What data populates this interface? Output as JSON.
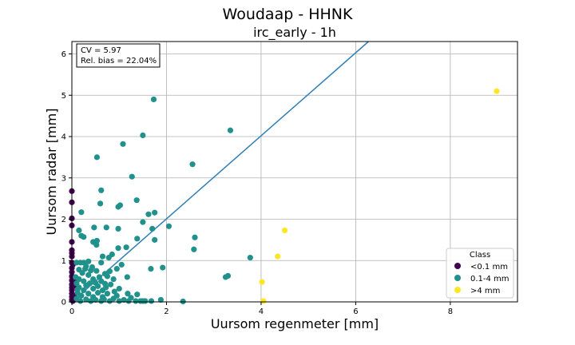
{
  "figure": {
    "suptitle": "Woudaap - HHNK"
  },
  "chart_data": {
    "type": "scatter",
    "title": "irc_early - 1h",
    "xlabel": "Uursom regenmeter [mm]",
    "ylabel": "Uursom radar [mm]",
    "xlim": [
      0,
      9.42
    ],
    "ylim": [
      0,
      6.3
    ],
    "xticks": [
      0,
      2,
      4,
      6,
      8
    ],
    "yticks": [
      0,
      1,
      2,
      3,
      4,
      5,
      6
    ],
    "xtick_labels": [
      "0",
      "2",
      "4",
      "6",
      "8"
    ],
    "ytick_labels": [
      "0",
      "1",
      "2",
      "3",
      "4",
      "5",
      "6"
    ],
    "grid": true,
    "stats": {
      "cv_line": "CV = 5.97",
      "bias_line": "Rel. bias = 22.04%",
      "placement": "top-left"
    },
    "fit_line": {
      "color": "#2f7fb6",
      "points": [
        [
          0,
          0
        ],
        [
          6.27,
          6.3
        ]
      ]
    },
    "legend": {
      "title": "Class",
      "placement": "bottom-right"
    },
    "series": [
      {
        "name": "<0.1 mm",
        "color": "#440154",
        "points": [
          [
            0,
            2.68
          ],
          [
            0,
            2.41
          ],
          [
            0,
            2.02
          ],
          [
            0,
            1.85
          ],
          [
            0,
            1.45
          ],
          [
            0,
            1.25
          ],
          [
            0,
            1.18
          ],
          [
            0,
            1.1
          ],
          [
            0,
            0.95
          ],
          [
            0,
            0.82
          ],
          [
            0,
            0.72
          ],
          [
            0,
            0.62
          ],
          [
            0,
            0.52
          ],
          [
            0,
            0.42
          ],
          [
            0,
            0.35
          ],
          [
            0,
            0.28
          ],
          [
            0,
            0.2
          ],
          [
            0,
            0.12
          ],
          [
            0,
            0.05
          ],
          [
            0.02,
            0.9
          ],
          [
            0.03,
            0.6
          ],
          [
            0.04,
            0.38
          ],
          [
            0.05,
            0.15
          ],
          [
            0.06,
            0.52
          ],
          [
            0.02,
            0.02
          ]
        ]
      },
      {
        "name": "0.1-4 mm",
        "color": "#21918c",
        "points": [
          [
            1.73,
            4.9
          ],
          [
            3.35,
            4.15
          ],
          [
            1.5,
            4.03
          ],
          [
            1.08,
            3.82
          ],
          [
            0.53,
            3.5
          ],
          [
            2.55,
            3.33
          ],
          [
            1.27,
            3.03
          ],
          [
            0.62,
            2.7
          ],
          [
            1.37,
            2.46
          ],
          [
            0.6,
            2.38
          ],
          [
            1.02,
            2.34
          ],
          [
            0.98,
            2.3
          ],
          [
            1.75,
            2.16
          ],
          [
            1.62,
            2.12
          ],
          [
            0.2,
            2.17
          ],
          [
            1.5,
            1.93
          ],
          [
            2.05,
            1.83
          ],
          [
            0.47,
            1.8
          ],
          [
            0.73,
            1.8
          ],
          [
            0.98,
            1.77
          ],
          [
            1.7,
            1.77
          ],
          [
            0.15,
            1.73
          ],
          [
            0.2,
            1.6
          ],
          [
            0.25,
            1.57
          ],
          [
            2.6,
            1.56
          ],
          [
            1.38,
            1.53
          ],
          [
            1.75,
            1.5
          ],
          [
            0.53,
            1.48
          ],
          [
            0.45,
            1.45
          ],
          [
            0.52,
            1.38
          ],
          [
            1.15,
            1.32
          ],
          [
            0.98,
            1.3
          ],
          [
            2.58,
            1.27
          ],
          [
            0.85,
            1.15
          ],
          [
            0.65,
            1.1
          ],
          [
            3.77,
            1.07
          ],
          [
            0.78,
            1.07
          ],
          [
            0.1,
            0.95
          ],
          [
            0.18,
            0.95
          ],
          [
            0.25,
            0.95
          ],
          [
            0.35,
            0.98
          ],
          [
            0.62,
            0.95
          ],
          [
            1.05,
            0.9
          ],
          [
            0.3,
            0.86
          ],
          [
            0.43,
            0.84
          ],
          [
            1.92,
            0.83
          ],
          [
            1.67,
            0.8
          ],
          [
            0.95,
            0.8
          ],
          [
            0.15,
            0.78
          ],
          [
            0.4,
            0.76
          ],
          [
            0.52,
            0.75
          ],
          [
            0.8,
            0.74
          ],
          [
            0.22,
            0.7
          ],
          [
            0.7,
            0.68
          ],
          [
            0.35,
            0.65
          ],
          [
            0.75,
            0.62
          ],
          [
            3.3,
            0.63
          ],
          [
            3.25,
            0.6
          ],
          [
            1.17,
            0.6
          ],
          [
            0.15,
            0.55
          ],
          [
            0.45,
            0.55
          ],
          [
            0.88,
            0.55
          ],
          [
            0.25,
            0.5
          ],
          [
            0.62,
            0.5
          ],
          [
            0.1,
            0.45
          ],
          [
            0.38,
            0.45
          ],
          [
            0.5,
            0.46
          ],
          [
            0.7,
            0.44
          ],
          [
            0.3,
            0.4
          ],
          [
            0.55,
            0.38
          ],
          [
            0.82,
            0.42
          ],
          [
            0.15,
            0.35
          ],
          [
            0.45,
            0.32
          ],
          [
            1.0,
            0.32
          ],
          [
            0.25,
            0.28
          ],
          [
            0.65,
            0.28
          ],
          [
            0.12,
            0.22
          ],
          [
            0.35,
            0.2
          ],
          [
            0.55,
            0.22
          ],
          [
            0.75,
            0.2
          ],
          [
            1.18,
            0.2
          ],
          [
            1.38,
            0.18
          ],
          [
            0.2,
            0.15
          ],
          [
            0.45,
            0.12
          ],
          [
            0.65,
            0.12
          ],
          [
            0.95,
            0.15
          ],
          [
            0.1,
            0.08
          ],
          [
            0.3,
            0.06
          ],
          [
            0.5,
            0.05
          ],
          [
            0.68,
            0.06
          ],
          [
            0.88,
            0.08
          ],
          [
            1.1,
            0.05
          ],
          [
            0.18,
            0.02
          ],
          [
            0.4,
            0.02
          ],
          [
            0.62,
            0.02
          ],
          [
            0.8,
            0.02
          ],
          [
            1.0,
            0.02
          ],
          [
            1.2,
            0.02
          ],
          [
            1.35,
            0.02
          ],
          [
            1.45,
            0.02
          ],
          [
            1.55,
            0.02
          ],
          [
            1.68,
            0.02
          ],
          [
            1.88,
            0.05
          ],
          [
            2.35,
            0.01
          ],
          [
            0.08,
            0.6
          ],
          [
            0.12,
            0.3
          ],
          [
            0.28,
            0.8
          ],
          [
            0.58,
            0.6
          ],
          [
            0.72,
            0.35
          ],
          [
            0.9,
            0.25
          ],
          [
            1.25,
            0.1
          ],
          [
            1.5,
            0.02
          ]
        ]
      },
      {
        "name": ">4 mm",
        "color": "#fde725",
        "points": [
          [
            8.98,
            5.1
          ],
          [
            4.5,
            1.73
          ],
          [
            4.35,
            1.1
          ],
          [
            4.02,
            0.48
          ],
          [
            4.05,
            0.02
          ]
        ]
      }
    ]
  }
}
